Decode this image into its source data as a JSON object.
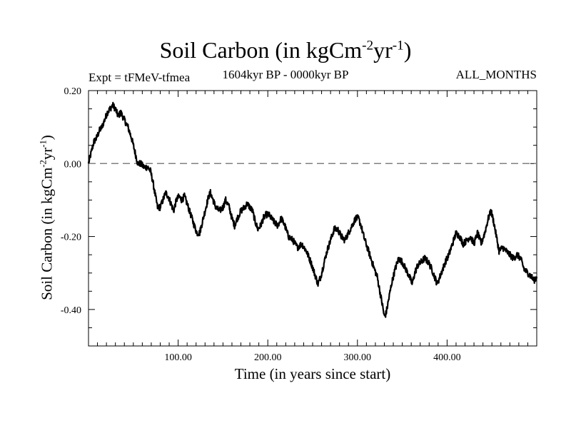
{
  "chart_data": {
    "type": "line",
    "title": "Soil Carbon (in kgCm",
    "title_exp1": "-2",
    "title_mid": "yr",
    "title_exp2": "-1",
    "title_end": ")",
    "subtitle_left": "Expt = tFMeV-tfmea",
    "subtitle_center": "1604kyr BP - 0000kyr BP",
    "subtitle_right": "ALL_MONTHS",
    "xlabel": "Time (in years since start)",
    "ylabel_main": "Soil Carbon (in kgCm",
    "ylabel_exp1": "-2",
    "ylabel_mid": "yr",
    "ylabel_exp2": "-1",
    "ylabel_end": ")",
    "xlim": [
      0,
      500
    ],
    "ylim": [
      -0.5,
      0.2
    ],
    "xticks": [
      100,
      200,
      300,
      400
    ],
    "xtick_labels": [
      "100.00",
      "200.00",
      "300.00",
      "400.00"
    ],
    "yticks": [
      0.2,
      0.0,
      -0.2,
      -0.4
    ],
    "ytick_labels": [
      "0.20",
      "0.00",
      "-0.20",
      "-0.40"
    ],
    "reference_line": {
      "y": 0.0,
      "style": "dashed",
      "color": "#808080"
    },
    "series": [
      {
        "name": "Soil Carbon",
        "color": "#000000",
        "points": [
          [
            0,
            0.0
          ],
          [
            3,
            0.03
          ],
          [
            6,
            0.06
          ],
          [
            9,
            0.07
          ],
          [
            12,
            0.09
          ],
          [
            15,
            0.1
          ],
          [
            18,
            0.12
          ],
          [
            21,
            0.14
          ],
          [
            24,
            0.15
          ],
          [
            27,
            0.16
          ],
          [
            30,
            0.15
          ],
          [
            33,
            0.13
          ],
          [
            36,
            0.14
          ],
          [
            40,
            0.12
          ],
          [
            44,
            0.1
          ],
          [
            48,
            0.07
          ],
          [
            52,
            0.03
          ],
          [
            55,
            0.0
          ],
          [
            58,
            0.0
          ],
          [
            62,
            -0.01
          ],
          [
            66,
            -0.01
          ],
          [
            69,
            -0.02
          ],
          [
            71,
            -0.04
          ],
          [
            74,
            -0.08
          ],
          [
            77,
            -0.12
          ],
          [
            80,
            -0.12
          ],
          [
            83,
            -0.1
          ],
          [
            86,
            -0.08
          ],
          [
            89,
            -0.09
          ],
          [
            92,
            -0.11
          ],
          [
            95,
            -0.13
          ],
          [
            98,
            -0.1
          ],
          [
            101,
            -0.09
          ],
          [
            104,
            -0.1
          ],
          [
            107,
            -0.09
          ],
          [
            110,
            -0.11
          ],
          [
            114,
            -0.14
          ],
          [
            118,
            -0.17
          ],
          [
            121,
            -0.19
          ],
          [
            124,
            -0.19
          ],
          [
            127,
            -0.16
          ],
          [
            131,
            -0.12
          ],
          [
            134,
            -0.09
          ],
          [
            136,
            -0.08
          ],
          [
            139,
            -0.1
          ],
          [
            142,
            -0.12
          ],
          [
            146,
            -0.13
          ],
          [
            150,
            -0.12
          ],
          [
            153,
            -0.1
          ],
          [
            157,
            -0.12
          ],
          [
            160,
            -0.15
          ],
          [
            163,
            -0.17
          ],
          [
            166,
            -0.15
          ],
          [
            170,
            -0.13
          ],
          [
            174,
            -0.12
          ],
          [
            177,
            -0.11
          ],
          [
            180,
            -0.12
          ],
          [
            183,
            -0.13
          ],
          [
            186,
            -0.16
          ],
          [
            189,
            -0.18
          ],
          [
            192,
            -0.17
          ],
          [
            195,
            -0.15
          ],
          [
            198,
            -0.14
          ],
          [
            201,
            -0.14
          ],
          [
            204,
            -0.15
          ],
          [
            207,
            -0.16
          ],
          [
            211,
            -0.17
          ],
          [
            215,
            -0.15
          ],
          [
            219,
            -0.17
          ],
          [
            223,
            -0.2
          ],
          [
            228,
            -0.21
          ],
          [
            233,
            -0.23
          ],
          [
            238,
            -0.22
          ],
          [
            243,
            -0.24
          ],
          [
            248,
            -0.27
          ],
          [
            252,
            -0.3
          ],
          [
            256,
            -0.33
          ],
          [
            259,
            -0.31
          ],
          [
            262,
            -0.28
          ],
          [
            266,
            -0.24
          ],
          [
            270,
            -0.21
          ],
          [
            274,
            -0.18
          ],
          [
            278,
            -0.18
          ],
          [
            282,
            -0.2
          ],
          [
            286,
            -0.21
          ],
          [
            290,
            -0.19
          ],
          [
            294,
            -0.17
          ],
          [
            298,
            -0.15
          ],
          [
            301,
            -0.15
          ],
          [
            304,
            -0.17
          ],
          [
            307,
            -0.2
          ],
          [
            311,
            -0.23
          ],
          [
            315,
            -0.26
          ],
          [
            319,
            -0.29
          ],
          [
            322,
            -0.31
          ],
          [
            325,
            -0.35
          ],
          [
            328,
            -0.39
          ],
          [
            330,
            -0.42
          ],
          [
            332,
            -0.41
          ],
          [
            335,
            -0.37
          ],
          [
            338,
            -0.33
          ],
          [
            342,
            -0.29
          ],
          [
            346,
            -0.26
          ],
          [
            350,
            -0.27
          ],
          [
            354,
            -0.29
          ],
          [
            358,
            -0.31
          ],
          [
            361,
            -0.33
          ],
          [
            364,
            -0.3
          ],
          [
            367,
            -0.28
          ],
          [
            371,
            -0.27
          ],
          [
            375,
            -0.26
          ],
          [
            379,
            -0.27
          ],
          [
            383,
            -0.29
          ],
          [
            386,
            -0.31
          ],
          [
            389,
            -0.33
          ],
          [
            392,
            -0.31
          ],
          [
            395,
            -0.29
          ],
          [
            398,
            -0.27
          ],
          [
            402,
            -0.25
          ],
          [
            406,
            -0.22
          ],
          [
            410,
            -0.19
          ],
          [
            414,
            -0.2
          ],
          [
            418,
            -0.22
          ],
          [
            422,
            -0.21
          ],
          [
            426,
            -0.2
          ],
          [
            430,
            -0.22
          ],
          [
            434,
            -0.19
          ],
          [
            438,
            -0.22
          ],
          [
            442,
            -0.19
          ],
          [
            446,
            -0.15
          ],
          [
            449,
            -0.13
          ],
          [
            452,
            -0.16
          ],
          [
            455,
            -0.2
          ],
          [
            458,
            -0.24
          ],
          [
            462,
            -0.23
          ],
          [
            466,
            -0.24
          ],
          [
            470,
            -0.25
          ],
          [
            474,
            -0.26
          ],
          [
            478,
            -0.25
          ],
          [
            482,
            -0.26
          ],
          [
            486,
            -0.29
          ],
          [
            490,
            -0.3
          ],
          [
            494,
            -0.31
          ],
          [
            497,
            -0.32
          ],
          [
            500,
            -0.31
          ]
        ]
      }
    ]
  }
}
